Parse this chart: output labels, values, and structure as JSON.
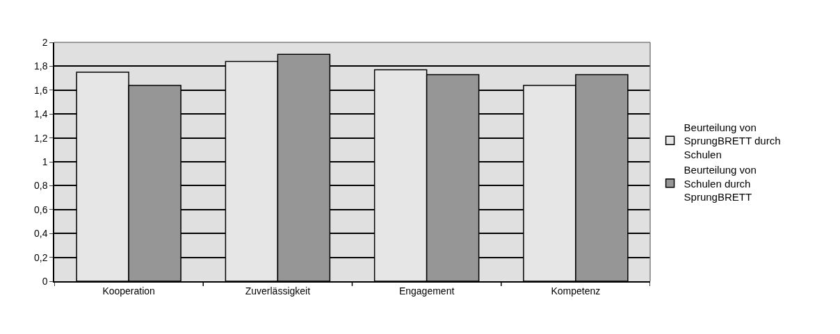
{
  "chart_data": {
    "type": "bar",
    "categories": [
      "Kooperation",
      "Zuverlässigkeit",
      "Engagement",
      "Kompetenz"
    ],
    "series": [
      {
        "name": "Beurteilung von SprungBRETT durch Schulen",
        "color": "#e6e6e6",
        "values": [
          1.75,
          1.84,
          1.77,
          1.64
        ]
      },
      {
        "name": "Beurteilung von Schulen durch SprungBRETT",
        "color": "#969696",
        "values": [
          1.64,
          1.9,
          1.73,
          1.73
        ]
      }
    ],
    "ylim": [
      0,
      2
    ],
    "yticks": [
      0,
      {
        "value": 0.2,
        "label": "0,2"
      },
      {
        "value": 0.4,
        "label": "0,4"
      },
      {
        "value": 0.6,
        "label": "0,6"
      },
      {
        "value": 0.8,
        "label": "0,8"
      },
      1,
      {
        "value": 1.2,
        "label": "1,2"
      },
      {
        "value": 1.4,
        "label": "1,4"
      },
      {
        "value": 1.6,
        "label": "1,6"
      },
      {
        "value": 1.8,
        "label": "1,8"
      },
      2
    ],
    "grid": "y",
    "legend": "right"
  }
}
